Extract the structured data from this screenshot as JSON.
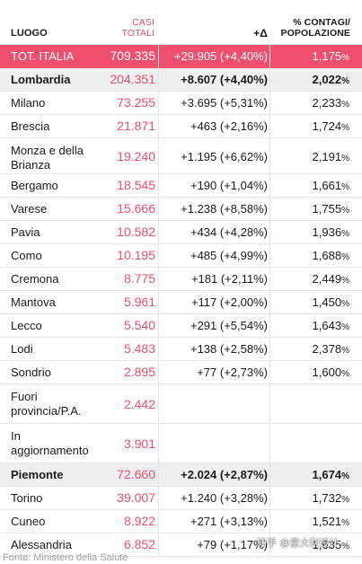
{
  "header": {
    "luogo": "LUOGO",
    "casi_line1": "CASI",
    "casi_line2": "TOTALI",
    "delta": "+Δ",
    "pct_line1": "% CONTAGI/",
    "pct_line2": "POPOLAZIONE"
  },
  "rows": [
    {
      "kind": "total",
      "name": "TOT. ITALIA",
      "casi": "709.335",
      "delta": "+29.905 (+4,40%)",
      "pct": "1,175",
      "pct_sign": "%"
    },
    {
      "kind": "region",
      "name": "Lombardia",
      "casi": "204.351",
      "delta": "+8.607 (+4,40%)",
      "pct": "2,022",
      "pct_sign": "%"
    },
    {
      "kind": "city",
      "name": "Milano",
      "casi": "73.255",
      "delta": "+3.695 (+5,31%)",
      "pct": "2,233",
      "pct_sign": "%"
    },
    {
      "kind": "city",
      "name": "Brescia",
      "casi": "21.871",
      "delta": "+463 (+2,16%)",
      "pct": "1,724",
      "pct_sign": "%"
    },
    {
      "kind": "city",
      "name": "Monza e della Brianza",
      "casi": "19.240",
      "delta": "+1.195 (+6,62%)",
      "pct": "2,191",
      "pct_sign": "%"
    },
    {
      "kind": "city",
      "name": "Bergamo",
      "casi": "18.545",
      "delta": "+190 (+1,04%)",
      "pct": "1,661",
      "pct_sign": "%"
    },
    {
      "kind": "city",
      "name": "Varese",
      "casi": "15.666",
      "delta": "+1.238 (+8,58%)",
      "pct": "1,755",
      "pct_sign": "%"
    },
    {
      "kind": "city",
      "name": "Pavia",
      "casi": "10.582",
      "delta": "+434 (+4,28%)",
      "pct": "1,936",
      "pct_sign": "%"
    },
    {
      "kind": "city",
      "name": "Como",
      "casi": "10.195",
      "delta": "+485 (+4,99%)",
      "pct": "1,688",
      "pct_sign": "%"
    },
    {
      "kind": "city",
      "name": "Cremona",
      "casi": "8.775",
      "delta": "+181 (+2,11%)",
      "pct": "2,449",
      "pct_sign": "%"
    },
    {
      "kind": "city",
      "name": "Mantova",
      "casi": "5.961",
      "delta": "+117 (+2,00%)",
      "pct": "1,450",
      "pct_sign": "%"
    },
    {
      "kind": "city",
      "name": "Lecco",
      "casi": "5.540",
      "delta": "+291 (+5,54%)",
      "pct": "1,643",
      "pct_sign": "%"
    },
    {
      "kind": "city",
      "name": "Lodi",
      "casi": "5.483",
      "delta": "+138 (+2,58%)",
      "pct": "2,378",
      "pct_sign": "%"
    },
    {
      "kind": "city",
      "name": "Sondrio",
      "casi": "2.895",
      "delta": "+77 (+2,73%)",
      "pct": "1,600",
      "pct_sign": "%"
    },
    {
      "kind": "city",
      "name": "Fuori provincia/P.A.",
      "casi": "2.442",
      "delta": "",
      "pct": "",
      "pct_sign": ""
    },
    {
      "kind": "city",
      "name": "In aggiornamento",
      "casi": "3.901",
      "delta": "",
      "pct": "",
      "pct_sign": ""
    },
    {
      "kind": "region",
      "name": "Piemonte",
      "casi": "72.660",
      "delta": "+2.024 (+2,87%)",
      "pct": "1,674",
      "pct_sign": "%"
    },
    {
      "kind": "city",
      "name": "Torino",
      "casi": "39.007",
      "delta": "+1.240 (+3,28%)",
      "pct": "1,732",
      "pct_sign": "%"
    },
    {
      "kind": "city",
      "name": "Cuneo",
      "casi": "8.922",
      "delta": "+271 (+3,13%)",
      "pct": "1,521",
      "pct_sign": "%"
    },
    {
      "kind": "city",
      "name": "Alessandria",
      "casi": "6.852",
      "delta": "+79 (+1,17%)",
      "pct": "1,635",
      "pct_sign": "%"
    }
  ],
  "source": "Fonte: Ministero della Salute",
  "watermark": "知乎 @意大利设计",
  "colors": {
    "accent": "#f0506e",
    "casi_text": "#e7506e",
    "region_bg": "#efefef"
  }
}
